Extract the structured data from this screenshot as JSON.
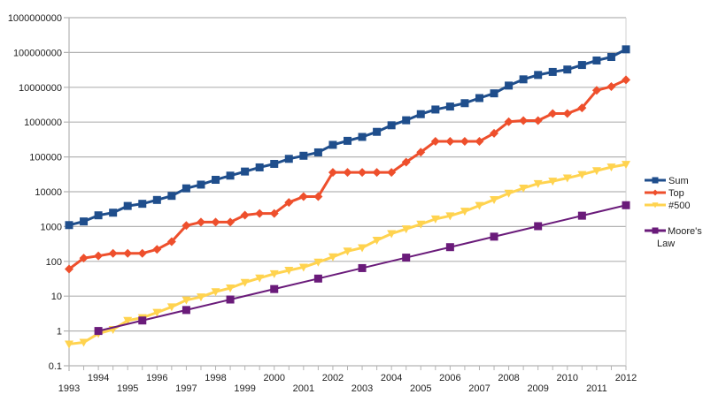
{
  "chart_data": {
    "type": "line",
    "title": "",
    "xlabel": "",
    "ylabel": "",
    "yscale": "log",
    "ylim": [
      0.1,
      1000000000
    ],
    "xlim": [
      1993,
      2012
    ],
    "grid": true,
    "legend_position": "right",
    "y_ticks": [
      "0.1",
      "1",
      "10",
      "100",
      "1000",
      "10000",
      "100000",
      "1000000",
      "10000000",
      "100000000",
      "1000000000"
    ],
    "x_ticks": [
      "1993",
      "1994",
      "1995",
      "1996",
      "1997",
      "1998",
      "1999",
      "2000",
      "2001",
      "2002",
      "2003",
      "2004",
      "2005",
      "2006",
      "2007",
      "2008",
      "2009",
      "2010",
      "2011",
      "2012"
    ],
    "series": [
      {
        "name": "Sum",
        "color": "#1f4e8c",
        "marker": "square",
        "x": [
          1993,
          1993.5,
          1994,
          1994.5,
          1995,
          1995.5,
          1996,
          1996.5,
          1997,
          1997.5,
          1998,
          1998.5,
          1999,
          1999.5,
          2000,
          2000.5,
          2001,
          2001.5,
          2002,
          2002.5,
          2003,
          2003.5,
          2004,
          2004.5,
          2005,
          2005.5,
          2006,
          2006.5,
          2007,
          2007.5,
          2008,
          2008.5,
          2009,
          2009.5,
          2010,
          2010.5,
          2011,
          2011.5,
          2012
        ],
        "values": [
          1100,
          1400,
          2100,
          2500,
          3900,
          4500,
          5800,
          7600,
          12500,
          16000,
          22000,
          29000,
          38000,
          50000,
          63000,
          88000,
          108000,
          135000,
          222000,
          290000,
          375000,
          525000,
          810000,
          1130000,
          1690000,
          2300000,
          2800000,
          3500000,
          4900000,
          6700000,
          11200000,
          16900000,
          22600000,
          27600000,
          32400000,
          43700000,
          58900000,
          74200000,
          123000000
        ]
      },
      {
        "name": "Top",
        "color": "#ee4f2c",
        "marker": "diamond",
        "x": [
          1993,
          1993.5,
          1994,
          1994.5,
          1995,
          1995.5,
          1996,
          1996.5,
          1997,
          1997.5,
          1998,
          1998.5,
          1999,
          1999.5,
          2000,
          2000.5,
          2001,
          2001.5,
          2002,
          2002.5,
          2003,
          2003.5,
          2004,
          2004.5,
          2005,
          2005.5,
          2006,
          2006.5,
          2007,
          2007.5,
          2008,
          2008.5,
          2009,
          2009.5,
          2010,
          2010.5,
          2011,
          2011.5,
          2012
        ],
        "values": [
          60,
          124,
          143,
          170,
          170,
          170,
          220,
          368,
          1068,
          1338,
          1338,
          1338,
          2121,
          2379,
          2379,
          4938,
          7226,
          7226,
          35860,
          35860,
          35860,
          35860,
          35860,
          70720,
          136800,
          280600,
          280600,
          280600,
          280600,
          478200,
          1026000,
          1105000,
          1105000,
          1759000,
          1759000,
          2566000,
          8162000,
          10510000,
          16320000
        ]
      },
      {
        "name": "#500",
        "color": "#ffd34f",
        "marker": "triangle-down",
        "x": [
          1993,
          1993.5,
          1994,
          1994.5,
          1995,
          1995.5,
          1996,
          1996.5,
          1997,
          1997.5,
          1998,
          1998.5,
          1999,
          1999.5,
          2000,
          2000.5,
          2001,
          2001.5,
          2002,
          2002.5,
          2003,
          2003.5,
          2004,
          2004.5,
          2005,
          2005.5,
          2006,
          2006.5,
          2007,
          2007.5,
          2008,
          2008.5,
          2009,
          2009.5,
          2010,
          2010.5,
          2011,
          2011.5,
          2012
        ],
        "values": [
          0.42,
          0.47,
          0.84,
          1.1,
          2.0,
          2.4,
          3.4,
          4.9,
          7.7,
          9.5,
          13.4,
          17.1,
          24.7,
          33.1,
          43.8,
          55.1,
          67.8,
          94.3,
          134,
          196,
          245,
          403,
          624,
          851,
          1166,
          1646,
          2026,
          2737,
          4005,
          5929,
          9000,
          12640,
          17090,
          20050,
          24670,
          31120,
          40190,
          50940,
          60820
        ]
      },
      {
        "name": "Moore's Law",
        "color": "#6a1b7a",
        "marker": "square",
        "x": [
          1994,
          1995.5,
          1997,
          1998.5,
          2000,
          2001.5,
          2003,
          2004.5,
          2006,
          2007.5,
          2009,
          2010.5,
          2012
        ],
        "values": [
          1,
          2,
          4,
          8,
          16,
          32,
          64,
          128,
          256,
          512,
          1024,
          2048,
          4096
        ]
      }
    ],
    "legend": [
      {
        "label": "Sum"
      },
      {
        "label": "Top"
      },
      {
        "label": "#500"
      },
      {
        "label": "Moore's Law"
      }
    ]
  }
}
